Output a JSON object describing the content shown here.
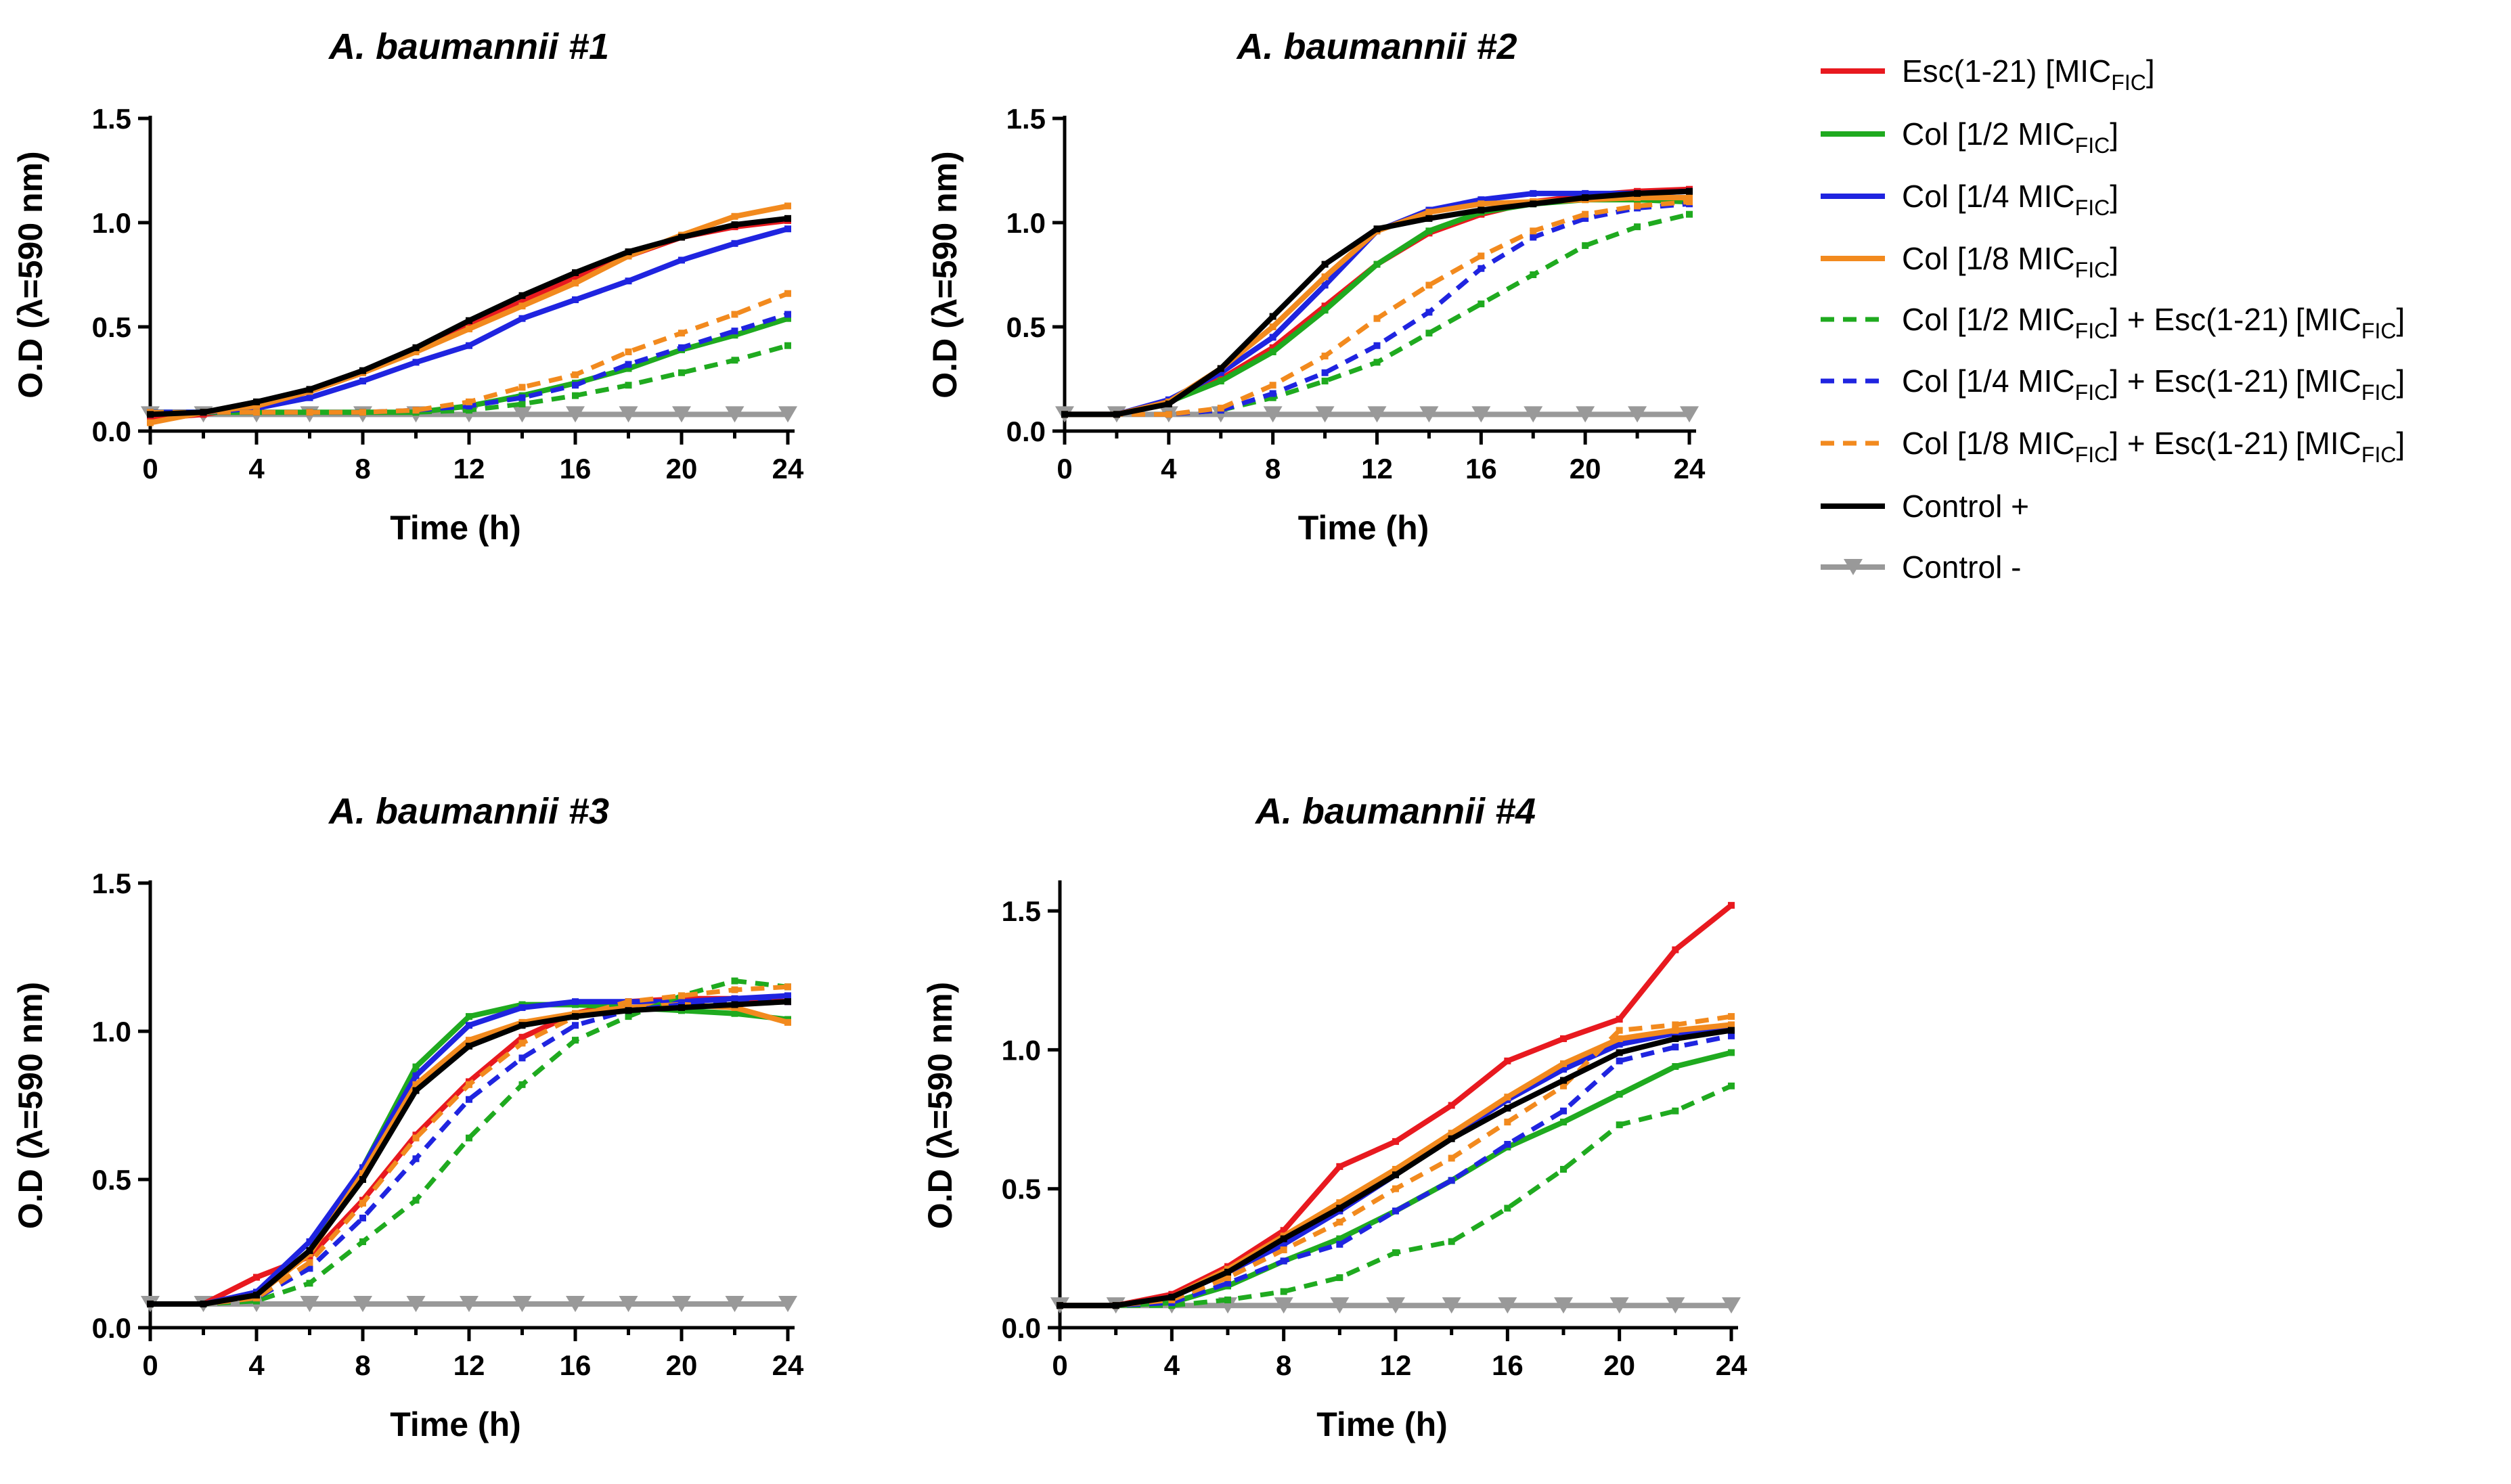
{
  "colors": {
    "esc": "#e8191f",
    "col_half": "#1faa1f",
    "col_quarter": "#1f24e0",
    "col_eighth": "#f28a1e",
    "control_pos": "#000000",
    "control_neg": "#999999"
  },
  "legend": [
    {
      "main": "Esc(1-21) ",
      "tail": "[MIC",
      "sub": "FIC",
      "end": "]",
      "combo": "",
      "combo_main": "",
      "combo_sub": "",
      "combo_end": ""
    },
    {
      "main": "Col [1/2 MIC",
      "tail": "",
      "sub": "FIC",
      "end": "]",
      "combo": "",
      "combo_main": "",
      "combo_sub": "",
      "combo_end": ""
    },
    {
      "main": "Col [1/4 MIC",
      "tail": "",
      "sub": "FIC",
      "end": "]",
      "combo": "",
      "combo_main": "",
      "combo_sub": "",
      "combo_end": ""
    },
    {
      "main": "Col [1/8 MIC",
      "tail": "",
      "sub": "FIC",
      "end": "]",
      "combo": "",
      "combo_main": "",
      "combo_sub": "",
      "combo_end": ""
    },
    {
      "main": "Col [1/2 MIC",
      "tail": "",
      "sub": "FIC",
      "end": "]",
      "combo": " + Esc(1-21)",
      "combo_main": "[MIC",
      "combo_sub": "FIC",
      "combo_end": "]"
    },
    {
      "main": "Col [1/4 MIC",
      "tail": "",
      "sub": "FIC",
      "end": "]",
      "combo": " + Esc(1-21)",
      "combo_main": "[MIC",
      "combo_sub": "FIC",
      "combo_end": "]"
    },
    {
      "main": "Col [1/8 MIC",
      "tail": "",
      "sub": "FIC",
      "end": "]",
      "combo": " + Esc(1-21)",
      "combo_main": "[MIC",
      "combo_sub": "FIC",
      "combo_end": "]"
    },
    {
      "main": "Control +",
      "tail": "",
      "sub": "",
      "end": "",
      "combo": "",
      "combo_main": "",
      "combo_sub": "",
      "combo_end": ""
    },
    {
      "main": "Control -",
      "tail": "",
      "sub": "",
      "end": "",
      "combo": "",
      "combo_main": "",
      "combo_sub": "",
      "combo_end": ""
    }
  ],
  "chart_data": [
    {
      "type": "line",
      "title": "A. baumannii #1",
      "xlabel": "Time (h)",
      "ylabel": "O.D (λ=590 nm)",
      "xlim": [
        0,
        24
      ],
      "ylim": [
        0,
        1.5
      ],
      "xticks": [
        0,
        4,
        8,
        12,
        16,
        20,
        24
      ],
      "yticks": [
        "0.0",
        "0.5",
        "1.0",
        "1.5"
      ],
      "x": [
        0,
        2,
        4,
        6,
        8,
        10,
        12,
        14,
        16,
        18,
        20,
        22,
        24
      ],
      "series": [
        {
          "name": "Esc(1-21) [MICFIC]",
          "color": "#e8191f",
          "dashed": false,
          "values": [
            0.06,
            0.08,
            0.12,
            0.19,
            0.28,
            0.39,
            0.51,
            0.62,
            0.74,
            0.84,
            0.93,
            0.98,
            1.01
          ]
        },
        {
          "name": "Col [1/2 MICFIC]",
          "color": "#1faa1f",
          "dashed": false,
          "values": [
            0.09,
            0.09,
            0.09,
            0.09,
            0.09,
            0.09,
            0.12,
            0.17,
            0.23,
            0.3,
            0.39,
            0.46,
            0.54
          ]
        },
        {
          "name": "Col [1/4 MICFIC]",
          "color": "#1f24e0",
          "dashed": false,
          "values": [
            0.09,
            0.09,
            0.11,
            0.16,
            0.24,
            0.33,
            0.41,
            0.54,
            0.63,
            0.72,
            0.82,
            0.9,
            0.97
          ]
        },
        {
          "name": "Col [1/8 MICFIC]",
          "color": "#f28a1e",
          "dashed": false,
          "values": [
            0.04,
            0.09,
            0.12,
            0.19,
            0.28,
            0.38,
            0.49,
            0.6,
            0.71,
            0.84,
            0.94,
            1.03,
            1.08
          ]
        },
        {
          "name": "Col [1/2 MICFIC] + Esc(1-21)[MICFIC]",
          "color": "#1faa1f",
          "dashed": true,
          "values": [
            0.09,
            0.09,
            0.09,
            0.09,
            0.09,
            0.09,
            0.1,
            0.13,
            0.17,
            0.22,
            0.28,
            0.34,
            0.41
          ]
        },
        {
          "name": "Col [1/4 MICFIC] + Esc(1-21)[MICFIC]",
          "color": "#1f24e0",
          "dashed": true,
          "values": [
            0.09,
            0.09,
            0.09,
            0.09,
            0.09,
            0.1,
            0.12,
            0.16,
            0.22,
            0.32,
            0.4,
            0.48,
            0.56
          ]
        },
        {
          "name": "Col [1/8 MICFIC] + Esc(1-21)[MICFIC]",
          "color": "#f28a1e",
          "dashed": true,
          "values": [
            0.09,
            0.09,
            0.09,
            0.09,
            0.09,
            0.1,
            0.14,
            0.21,
            0.27,
            0.38,
            0.47,
            0.56,
            0.66
          ]
        },
        {
          "name": "Control +",
          "color": "#000000",
          "dashed": false,
          "values": [
            0.08,
            0.09,
            0.14,
            0.2,
            0.29,
            0.4,
            0.53,
            0.65,
            0.76,
            0.86,
            0.93,
            0.99,
            1.02
          ]
        },
        {
          "name": "Control -",
          "color": "#999999",
          "dashed": false,
          "marker": "triangle-down",
          "values": [
            0.08,
            0.08,
            0.08,
            0.08,
            0.08,
            0.08,
            0.08,
            0.08,
            0.08,
            0.08,
            0.08,
            0.08,
            0.08
          ]
        }
      ]
    },
    {
      "type": "line",
      "title": "A. baumannii #2",
      "xlabel": "Time (h)",
      "ylabel": "O.D (λ=590 nm)",
      "xlim": [
        0,
        24
      ],
      "ylim": [
        0,
        1.5
      ],
      "xticks": [
        0,
        4,
        8,
        12,
        16,
        20,
        24
      ],
      "yticks": [
        "0.0",
        "0.5",
        "1.0",
        "1.5"
      ],
      "x": [
        0,
        2,
        4,
        6,
        8,
        10,
        12,
        14,
        16,
        18,
        20,
        22,
        24
      ],
      "series": [
        {
          "name": "Esc(1-21) [MICFIC]",
          "color": "#e8191f",
          "dashed": false,
          "values": [
            0.08,
            0.08,
            0.14,
            0.25,
            0.4,
            0.6,
            0.8,
            0.95,
            1.04,
            1.1,
            1.13,
            1.15,
            1.16
          ]
        },
        {
          "name": "Col [1/2 MICFIC]",
          "color": "#1faa1f",
          "dashed": false,
          "values": [
            0.08,
            0.08,
            0.14,
            0.24,
            0.38,
            0.58,
            0.8,
            0.96,
            1.05,
            1.09,
            1.11,
            1.11,
            1.1
          ]
        },
        {
          "name": "Col [1/4 MICFIC]",
          "color": "#1f24e0",
          "dashed": false,
          "values": [
            0.08,
            0.08,
            0.15,
            0.28,
            0.45,
            0.7,
            0.96,
            1.06,
            1.11,
            1.14,
            1.14,
            1.14,
            1.15
          ]
        },
        {
          "name": "Col [1/8 MICFIC]",
          "color": "#f28a1e",
          "dashed": false,
          "values": [
            0.08,
            0.08,
            0.14,
            0.3,
            0.5,
            0.74,
            0.96,
            1.05,
            1.09,
            1.1,
            1.11,
            1.12,
            1.12
          ]
        },
        {
          "name": "Col [1/2 MICFIC] + Esc(1-21)[MICFIC]",
          "color": "#1faa1f",
          "dashed": true,
          "values": [
            0.08,
            0.08,
            0.08,
            0.1,
            0.16,
            0.24,
            0.33,
            0.47,
            0.61,
            0.75,
            0.89,
            0.98,
            1.04
          ]
        },
        {
          "name": "Col [1/4 MICFIC] + Esc(1-21)[MICFIC]",
          "color": "#1f24e0",
          "dashed": true,
          "values": [
            0.08,
            0.08,
            0.08,
            0.1,
            0.18,
            0.28,
            0.41,
            0.57,
            0.78,
            0.93,
            1.02,
            1.07,
            1.09
          ]
        },
        {
          "name": "Col [1/8 MICFIC] + Esc(1-21)[MICFIC]",
          "color": "#f28a1e",
          "dashed": true,
          "values": [
            0.08,
            0.08,
            0.08,
            0.11,
            0.22,
            0.36,
            0.54,
            0.7,
            0.84,
            0.96,
            1.04,
            1.08,
            1.1
          ]
        },
        {
          "name": "Control +",
          "color": "#000000",
          "dashed": false,
          "values": [
            0.08,
            0.08,
            0.13,
            0.3,
            0.55,
            0.8,
            0.97,
            1.02,
            1.06,
            1.09,
            1.12,
            1.14,
            1.15
          ]
        },
        {
          "name": "Control -",
          "color": "#999999",
          "dashed": false,
          "marker": "triangle-down",
          "values": [
            0.08,
            0.08,
            0.08,
            0.08,
            0.08,
            0.08,
            0.08,
            0.08,
            0.08,
            0.08,
            0.08,
            0.08,
            0.08
          ]
        }
      ]
    },
    {
      "type": "line",
      "title": "A. baumannii #3",
      "xlabel": "Time (h)",
      "ylabel": "O.D (λ=590 nm)",
      "xlim": [
        0,
        24
      ],
      "ylim": [
        0,
        1.5
      ],
      "xticks": [
        0,
        4,
        8,
        12,
        16,
        20,
        24
      ],
      "yticks": [
        "0.0",
        "0.5",
        "1.0",
        "1.5"
      ],
      "x": [
        0,
        2,
        4,
        6,
        8,
        10,
        12,
        14,
        16,
        18,
        20,
        22,
        24
      ],
      "series": [
        {
          "name": "Esc(1-21) [MICFIC]",
          "color": "#e8191f",
          "dashed": false,
          "values": [
            0.08,
            0.08,
            0.17,
            0.24,
            0.43,
            0.65,
            0.83,
            0.98,
            1.06,
            1.1,
            1.11,
            1.11,
            1.1
          ]
        },
        {
          "name": "Col [1/2 MICFIC]",
          "color": "#1faa1f",
          "dashed": false,
          "values": [
            0.08,
            0.08,
            0.11,
            0.26,
            0.54,
            0.88,
            1.05,
            1.09,
            1.09,
            1.08,
            1.07,
            1.06,
            1.04
          ]
        },
        {
          "name": "Col [1/4 MICFIC]",
          "color": "#1f24e0",
          "dashed": false,
          "values": [
            0.08,
            0.08,
            0.12,
            0.29,
            0.54,
            0.85,
            1.02,
            1.08,
            1.1,
            1.1,
            1.1,
            1.11,
            1.12
          ]
        },
        {
          "name": "Col [1/8 MICFIC]",
          "color": "#f28a1e",
          "dashed": false,
          "values": [
            0.08,
            0.08,
            0.11,
            0.25,
            0.52,
            0.82,
            0.97,
            1.03,
            1.06,
            1.08,
            1.09,
            1.08,
            1.03
          ]
        },
        {
          "name": "Col [1/2 MICFIC] + Esc(1-21)[MICFIC]",
          "color": "#1faa1f",
          "dashed": true,
          "values": [
            0.08,
            0.08,
            0.09,
            0.15,
            0.29,
            0.43,
            0.64,
            0.82,
            0.97,
            1.05,
            1.12,
            1.17,
            1.15
          ]
        },
        {
          "name": "Col [1/4 MICFIC] + Esc(1-21)[MICFIC]",
          "color": "#1f24e0",
          "dashed": true,
          "values": [
            0.08,
            0.08,
            0.1,
            0.2,
            0.37,
            0.57,
            0.77,
            0.91,
            1.02,
            1.07,
            1.09,
            1.1,
            1.1
          ]
        },
        {
          "name": "Col [1/8 MICFIC] + Esc(1-21)[MICFIC]",
          "color": "#f28a1e",
          "dashed": true,
          "values": [
            0.08,
            0.08,
            0.1,
            0.22,
            0.42,
            0.64,
            0.82,
            0.96,
            1.05,
            1.1,
            1.12,
            1.14,
            1.15
          ]
        },
        {
          "name": "Control +",
          "color": "#000000",
          "dashed": false,
          "values": [
            0.08,
            0.08,
            0.11,
            0.26,
            0.5,
            0.8,
            0.95,
            1.02,
            1.05,
            1.07,
            1.08,
            1.09,
            1.1
          ]
        },
        {
          "name": "Control -",
          "color": "#999999",
          "dashed": false,
          "marker": "triangle-down",
          "values": [
            0.08,
            0.08,
            0.08,
            0.08,
            0.08,
            0.08,
            0.08,
            0.08,
            0.08,
            0.08,
            0.08,
            0.08,
            0.08
          ]
        }
      ]
    },
    {
      "type": "line",
      "title": "A. baumannii #4",
      "xlabel": "Time (h)",
      "ylabel": "O.D (λ=590 nm)",
      "xlim": [
        0,
        24
      ],
      "ylim": [
        0,
        1.6
      ],
      "xticks": [
        0,
        4,
        8,
        12,
        16,
        20,
        24
      ],
      "yticks": [
        "0.0",
        "0.5",
        "1.0",
        "1.5"
      ],
      "x": [
        0,
        2,
        4,
        6,
        8,
        10,
        12,
        14,
        16,
        18,
        20,
        22,
        24
      ],
      "series": [
        {
          "name": "Esc(1-21) [MICFIC]",
          "color": "#e8191f",
          "dashed": false,
          "values": [
            0.08,
            0.08,
            0.12,
            0.22,
            0.35,
            0.58,
            0.67,
            0.8,
            0.96,
            1.04,
            1.11,
            1.36,
            1.52
          ]
        },
        {
          "name": "Col [1/2 MICFIC]",
          "color": "#1faa1f",
          "dashed": false,
          "values": [
            0.08,
            0.08,
            0.09,
            0.15,
            0.24,
            0.32,
            0.42,
            0.53,
            0.65,
            0.74,
            0.84,
            0.94,
            0.99
          ]
        },
        {
          "name": "Col [1/4 MICFIC]",
          "color": "#1f24e0",
          "dashed": false,
          "values": [
            0.08,
            0.08,
            0.11,
            0.2,
            0.3,
            0.42,
            0.55,
            0.69,
            0.82,
            0.93,
            1.02,
            1.06,
            1.08
          ]
        },
        {
          "name": "Col [1/8 MICFIC]",
          "color": "#f28a1e",
          "dashed": false,
          "values": [
            0.08,
            0.08,
            0.11,
            0.21,
            0.33,
            0.45,
            0.57,
            0.7,
            0.83,
            0.95,
            1.04,
            1.07,
            1.09
          ]
        },
        {
          "name": "Col [1/2 MICFIC] + Esc(1-21)[MICFIC]",
          "color": "#1faa1f",
          "dashed": true,
          "values": [
            0.08,
            0.08,
            0.08,
            0.1,
            0.13,
            0.18,
            0.27,
            0.31,
            0.43,
            0.57,
            0.73,
            0.78,
            0.87
          ]
        },
        {
          "name": "Col [1/4 MICFIC] + Esc(1-21)[MICFIC]",
          "color": "#1f24e0",
          "dashed": true,
          "values": [
            0.08,
            0.08,
            0.09,
            0.16,
            0.24,
            0.3,
            0.42,
            0.53,
            0.66,
            0.78,
            0.96,
            1.01,
            1.05
          ]
        },
        {
          "name": "Col [1/8 MICFIC] + Esc(1-21)[MICFIC]",
          "color": "#f28a1e",
          "dashed": true,
          "values": [
            0.08,
            0.08,
            0.1,
            0.18,
            0.28,
            0.38,
            0.5,
            0.61,
            0.74,
            0.87,
            1.07,
            1.09,
            1.12
          ]
        },
        {
          "name": "Control +",
          "color": "#000000",
          "dashed": false,
          "values": [
            0.08,
            0.08,
            0.11,
            0.2,
            0.32,
            0.43,
            0.55,
            0.68,
            0.79,
            0.89,
            0.99,
            1.04,
            1.07
          ]
        },
        {
          "name": "Control -",
          "color": "#999999",
          "dashed": false,
          "marker": "triangle-down",
          "values": [
            0.08,
            0.08,
            0.08,
            0.08,
            0.08,
            0.08,
            0.08,
            0.08,
            0.08,
            0.08,
            0.08,
            0.08,
            0.08
          ]
        }
      ]
    }
  ]
}
